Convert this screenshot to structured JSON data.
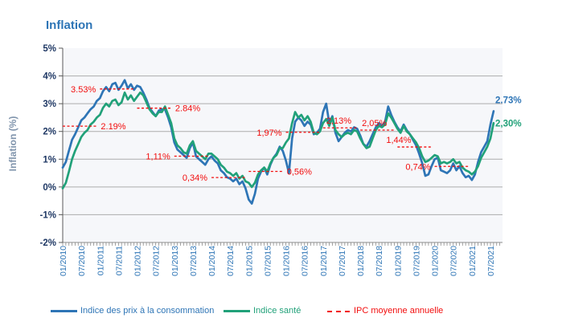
{
  "page_title": "Inflation",
  "y_axis_title": "Inflation (%)",
  "chart_data": {
    "type": "line",
    "title": "Inflation",
    "ylabel": "Inflation (%)",
    "ylim": [
      -2,
      5
    ],
    "grid": "horizontal",
    "x_start": "01/2010",
    "x_end": "08/2021",
    "x_frequency": "monthly",
    "x_tick_labels": [
      "01/2010",
      "07/2010",
      "01/2011",
      "07/2011",
      "01/2012",
      "07/2012",
      "01/2013",
      "07/2013",
      "01/2014",
      "07/2014",
      "01/2015",
      "07/2015",
      "01/2016",
      "07/2016",
      "01/2017",
      "07/2017",
      "01/2018",
      "07/2018",
      "01/2019",
      "07/2019",
      "01/2020",
      "07/2020",
      "01/2021",
      "07/2021"
    ],
    "y_ticks": [
      {
        "value": 5,
        "label": "5%"
      },
      {
        "value": 4,
        "label": "4%"
      },
      {
        "value": 3,
        "label": "3%"
      },
      {
        "value": 2,
        "label": "2%"
      },
      {
        "value": 1,
        "label": "1%"
      },
      {
        "value": 0,
        "label": "0%"
      },
      {
        "value": -1,
        "label": "-1%"
      },
      {
        "value": -2,
        "label": "-2%"
      }
    ],
    "series": [
      {
        "name": "Indice des prix à la consommation",
        "color": "#2E75B6",
        "values": [
          0.7,
          0.9,
          1.3,
          1.7,
          1.9,
          2.15,
          2.4,
          2.5,
          2.65,
          2.8,
          2.9,
          3.1,
          3.2,
          3.45,
          3.6,
          3.45,
          3.7,
          3.75,
          3.5,
          3.65,
          3.85,
          3.55,
          3.7,
          3.5,
          3.65,
          3.6,
          3.4,
          3.15,
          2.85,
          2.7,
          2.55,
          2.75,
          2.8,
          2.8,
          2.5,
          2.15,
          1.6,
          1.35,
          1.25,
          1.15,
          1.05,
          1.4,
          1.6,
          1.1,
          1.0,
          0.9,
          0.8,
          1.0,
          1.1,
          0.95,
          0.85,
          0.6,
          0.5,
          0.35,
          0.3,
          0.2,
          0.3,
          0.1,
          0.2,
          -0.05,
          -0.45,
          -0.6,
          -0.25,
          0.3,
          0.55,
          0.7,
          0.45,
          0.8,
          1.05,
          1.2,
          1.45,
          1.3,
          0.95,
          0.5,
          1.75,
          2.35,
          2.5,
          2.4,
          2.2,
          2.35,
          2.25,
          1.9,
          1.95,
          2.1,
          2.7,
          3.0,
          2.3,
          2.55,
          1.95,
          1.65,
          1.8,
          1.95,
          2.05,
          2.0,
          2.15,
          2.1,
          1.85,
          1.55,
          1.45,
          1.65,
          1.9,
          2.15,
          2.3,
          2.2,
          2.35,
          2.9,
          2.6,
          2.35,
          2.15,
          2.0,
          2.25,
          2.05,
          1.9,
          1.7,
          1.5,
          1.2,
          0.85,
          0.4,
          0.45,
          0.75,
          1.0,
          1.05,
          0.6,
          0.55,
          0.5,
          0.6,
          0.85,
          0.6,
          0.75,
          0.5,
          0.35,
          0.4,
          0.25,
          0.45,
          0.9,
          1.25,
          1.45,
          1.65,
          2.25,
          2.73
        ]
      },
      {
        "name": "Indice santé",
        "color": "#21A179",
        "values": [
          -0.05,
          0.15,
          0.55,
          1.0,
          1.3,
          1.55,
          1.8,
          1.95,
          2.05,
          2.25,
          2.35,
          2.5,
          2.6,
          2.85,
          3.0,
          2.9,
          3.1,
          3.15,
          2.95,
          3.05,
          3.4,
          3.15,
          3.3,
          3.1,
          3.25,
          3.4,
          3.3,
          3.05,
          2.8,
          2.65,
          2.55,
          2.7,
          2.7,
          2.9,
          2.6,
          2.3,
          1.75,
          1.5,
          1.4,
          1.25,
          1.2,
          1.5,
          1.65,
          1.3,
          1.2,
          1.1,
          1.0,
          1.2,
          1.2,
          1.1,
          1.0,
          0.8,
          0.7,
          0.55,
          0.5,
          0.4,
          0.5,
          0.3,
          0.4,
          0.2,
          0.15,
          0.0,
          0.15,
          0.45,
          0.6,
          0.7,
          0.55,
          0.85,
          1.05,
          1.15,
          1.4,
          1.4,
          1.6,
          1.75,
          2.3,
          2.7,
          2.5,
          2.6,
          2.4,
          2.55,
          2.35,
          1.95,
          1.9,
          2.0,
          2.3,
          2.45,
          2.2,
          2.5,
          2.05,
          1.9,
          1.8,
          1.9,
          1.95,
          1.9,
          2.05,
          2.0,
          1.75,
          1.55,
          1.4,
          1.45,
          1.75,
          2.05,
          2.2,
          2.15,
          2.25,
          2.65,
          2.5,
          2.3,
          2.1,
          1.95,
          2.2,
          2.0,
          1.9,
          1.75,
          1.6,
          1.4,
          1.1,
          0.9,
          0.95,
          1.05,
          1.15,
          1.1,
          0.85,
          0.9,
          0.85,
          0.9,
          1.0,
          0.85,
          0.9,
          0.7,
          0.6,
          0.55,
          0.45,
          0.55,
          0.75,
          1.05,
          1.25,
          1.45,
          1.75,
          2.3
        ]
      }
    ],
    "annual_average_annotations": [
      {
        "year": "2010",
        "start_month_index": 0,
        "value": 2.19,
        "label": "2.19%",
        "side": "right",
        "dx": 0
      },
      {
        "year": "2011",
        "start_month_index": 12,
        "value": 3.53,
        "label": "3.53%",
        "side": "left",
        "dx": 0
      },
      {
        "year": "2012",
        "start_month_index": 24,
        "value": 2.84,
        "label": "2.84%",
        "side": "right",
        "dx": 0
      },
      {
        "year": "2013",
        "start_month_index": 36,
        "value": 1.11,
        "label": "1,11%",
        "side": "left",
        "dx": 0
      },
      {
        "year": "2014",
        "start_month_index": 48,
        "value": 0.34,
        "label": "0,34%",
        "side": "left",
        "dx": 0
      },
      {
        "year": "2015",
        "start_month_index": 60,
        "value": 0.56,
        "label": "0,56%",
        "side": "right",
        "dx": 0
      },
      {
        "year": "2016",
        "start_month_index": 72,
        "value": 1.97,
        "label": "1,97%",
        "side": "left",
        "dx": 0
      },
      {
        "year": "2017",
        "start_month_index": 84,
        "value": 2.13,
        "label": "2,13%",
        "side": "above",
        "dx": 4
      },
      {
        "year": "2018",
        "start_month_index": 96,
        "value": 2.05,
        "label": "2,05%",
        "side": "above",
        "dx": 2
      },
      {
        "year": "2019",
        "start_month_index": 108,
        "value": 1.44,
        "label": "1,44%",
        "side": "above",
        "dx": -14
      },
      {
        "year": "2020",
        "start_month_index": 120,
        "value": 0.74,
        "label": "0,74%",
        "side": "left",
        "dx": 0
      }
    ],
    "end_labels": [
      {
        "text": "2.73%",
        "color": "#2E75B6",
        "value": 2.73
      },
      {
        "text": "2,30%",
        "color": "#21A179",
        "value": 2.3
      }
    ],
    "legend": [
      {
        "label": "Indice des prix à la consommation",
        "color": "#2E75B6",
        "style": "solid"
      },
      {
        "label": "Indice santé",
        "color": "#21A179",
        "style": "solid"
      },
      {
        "label": "IPC moyenne annuelle",
        "color": "#F20D0D",
        "style": "dashed"
      }
    ],
    "colors": {
      "plot_bg": "#F6F7FA",
      "grid": "#ACACAC",
      "x_axis": "#8C8C8C",
      "y_axis": "#595959",
      "x_tick_label": "#2E75B6",
      "y_tick_label": "#1F3864",
      "annotation": "#F20D0D",
      "title": "#2E75B6",
      "y_axis_title": "#8094AC"
    }
  }
}
